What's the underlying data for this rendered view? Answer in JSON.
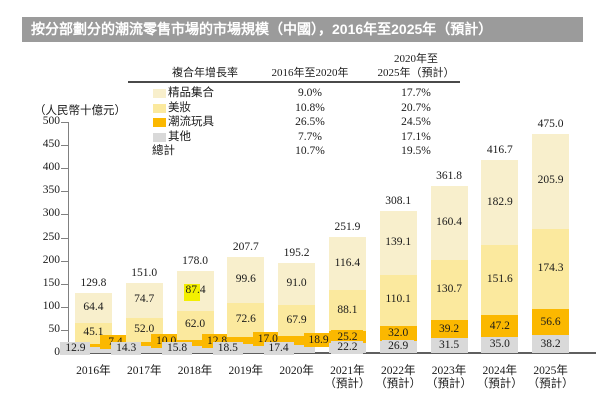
{
  "title_bar": {
    "text": "按分部劃分的潮流零售市場的市場規模（中國），2016年至2025年（預計）",
    "bg": "#9b9b9b"
  },
  "unit_label": "（人民幣十億元）",
  "legend_table": {
    "header": {
      "col1": "複合年增長率",
      "col2": "2016年至2020年",
      "col3_line1": "2020年至",
      "col3_line2": "2025年（預計）"
    },
    "rows": [
      {
        "label": "精品集合",
        "swatch": "#f8efcc",
        "cagr_2016_2020": "9.0%",
        "cagr_2020_2025": "17.7%"
      },
      {
        "label": "美妝",
        "swatch": "#fbe99e",
        "cagr_2016_2020": "10.8%",
        "cagr_2020_2025": "20.7%"
      },
      {
        "label": "潮流玩具",
        "swatch": "#fbb800",
        "cagr_2016_2020": "26.5%",
        "cagr_2020_2025": "24.5%"
      },
      {
        "label": "其他",
        "swatch": "#d9d9d9",
        "cagr_2016_2020": "7.7%",
        "cagr_2020_2025": "17.1%"
      },
      {
        "label": "總計",
        "swatch": null,
        "cagr_2016_2020": "10.7%",
        "cagr_2020_2025": "19.5%"
      }
    ]
  },
  "chart_data": {
    "type": "bar",
    "stacked": true,
    "title": "按分部劃分的潮流零售市場的市場規模（中國），2016年至2025年（預計）",
    "ylabel": "（人民幣十億元）",
    "ylim": [
      0,
      500
    ],
    "yticks": [
      0,
      50,
      100,
      150,
      200,
      250,
      300,
      350,
      400,
      450,
      500
    ],
    "grid": false,
    "legend_position": "top",
    "categories": [
      [
        "2016年"
      ],
      [
        "2017年"
      ],
      [
        "2018年"
      ],
      [
        "2019年"
      ],
      [
        "2020年"
      ],
      [
        "2021年",
        "（預計）"
      ],
      [
        "2022年",
        "（預計）"
      ],
      [
        "2023年",
        "（預計）"
      ],
      [
        "2024年",
        "（預計）"
      ],
      [
        "2025年",
        "（預計）"
      ]
    ],
    "series": [
      {
        "name": "其他",
        "color": "#d9d9d9",
        "values": [
          12.9,
          14.3,
          15.8,
          18.5,
          17.4,
          22.2,
          26.9,
          31.5,
          35.0,
          38.2
        ]
      },
      {
        "name": "潮流玩具",
        "color": "#fbb800",
        "values": [
          7.4,
          10.0,
          12.8,
          17.0,
          18.9,
          25.2,
          32.0,
          39.2,
          47.2,
          56.6
        ]
      },
      {
        "name": "美妝",
        "color": "#fbe99e",
        "values": [
          45.1,
          52.0,
          62.0,
          72.6,
          67.9,
          88.1,
          110.1,
          130.7,
          151.6,
          174.3
        ]
      },
      {
        "name": "精品集合",
        "color": "#f8efcc",
        "values": [
          64.4,
          74.7,
          87.4,
          99.6,
          91.0,
          116.4,
          139.1,
          160.4,
          182.9,
          205.9
        ]
      }
    ],
    "totals": [
      129.8,
      151.0,
      178.0,
      207.7,
      195.2,
      251.9,
      308.1,
      361.8,
      416.7,
      475.0
    ],
    "highlight": {
      "bar_index": 2,
      "series_index": 3,
      "highlighted_text": "87.",
      "rest_text": "4",
      "color": "#f3ef00"
    }
  }
}
